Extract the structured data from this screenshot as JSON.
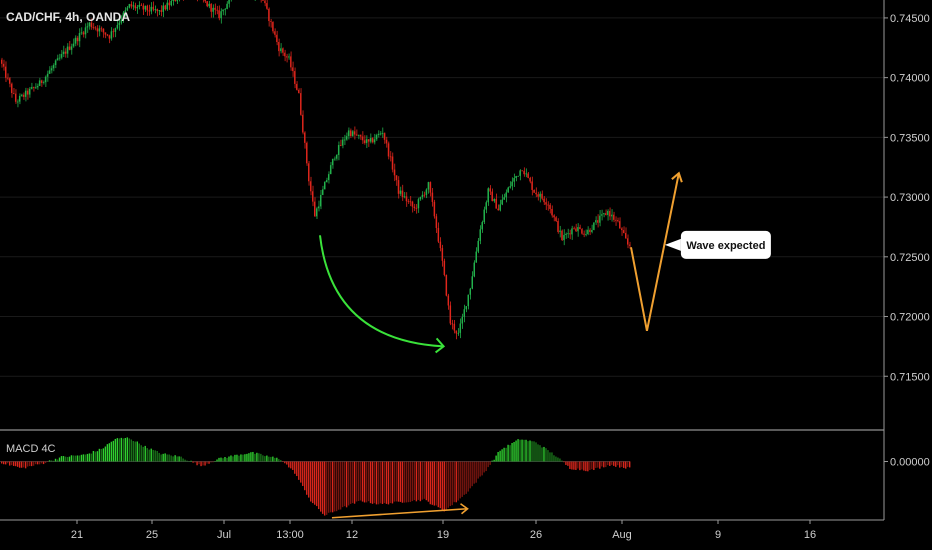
{
  "chart_data": {
    "type": "candlestick",
    "title": "CAD/CHF, 4h, OANDA",
    "price_axis": {
      "ticks": [
        0.745,
        0.74,
        0.735,
        0.73,
        0.725,
        0.72,
        0.715
      ],
      "tick_labels": [
        "0.74500",
        "0.74000",
        "0.73500",
        "0.73000",
        "0.72500",
        "0.72000",
        "0.71500"
      ],
      "range": [
        0.7105,
        0.7465
      ]
    },
    "time_axis": {
      "ticks": [
        "21",
        "25",
        "Jul",
        "13:00",
        "12",
        "19",
        "26",
        "Aug",
        "9",
        "16"
      ]
    },
    "price_path": [
      [
        0,
        0.7415
      ],
      [
        8,
        0.738
      ],
      [
        20,
        0.7395
      ],
      [
        32,
        0.742
      ],
      [
        45,
        0.7445
      ],
      [
        55,
        0.7435
      ],
      [
        65,
        0.746
      ],
      [
        80,
        0.7455
      ],
      [
        95,
        0.7475
      ],
      [
        110,
        0.7452
      ],
      [
        120,
        0.7478
      ],
      [
        132,
        0.7465
      ],
      [
        140,
        0.7425
      ],
      [
        145,
        0.7415
      ],
      [
        150,
        0.7385
      ],
      [
        155,
        0.7315
      ],
      [
        158,
        0.7285
      ],
      [
        162,
        0.7305
      ],
      [
        168,
        0.7335
      ],
      [
        175,
        0.7355
      ],
      [
        185,
        0.7345
      ],
      [
        192,
        0.7355
      ],
      [
        197,
        0.7325
      ],
      [
        200,
        0.7305
      ],
      [
        208,
        0.729
      ],
      [
        215,
        0.731
      ],
      [
        218,
        0.7285
      ],
      [
        222,
        0.7245
      ],
      [
        226,
        0.7195
      ],
      [
        230,
        0.7185
      ],
      [
        236,
        0.7225
      ],
      [
        240,
        0.7265
      ],
      [
        245,
        0.7305
      ],
      [
        250,
        0.729
      ],
      [
        256,
        0.731
      ],
      [
        262,
        0.7325
      ],
      [
        268,
        0.7305
      ],
      [
        275,
        0.7295
      ],
      [
        282,
        0.7265
      ],
      [
        288,
        0.7275
      ],
      [
        294,
        0.727
      ],
      [
        300,
        0.728
      ],
      [
        305,
        0.7288
      ],
      [
        310,
        0.7278
      ],
      [
        315,
        0.726
      ]
    ],
    "price_annotations": [
      {
        "type": "curved-arrow",
        "color": "#3ae23a",
        "from": [
          160,
          0.7268
        ],
        "to": [
          222,
          0.7175
        ]
      },
      {
        "type": "polyline-arrow",
        "color": "#f0a030",
        "points": [
          [
            316,
            0.7258
          ],
          [
            324,
            0.7188
          ],
          [
            340,
            0.732
          ]
        ]
      },
      {
        "type": "callout",
        "text": "Wave expected",
        "anchor": [
          333,
          0.726
        ]
      }
    ],
    "macd": {
      "label": "MACD 4C",
      "tick_labels": [
        "0.00000"
      ],
      "zero": 0,
      "range": [
        -0.0052,
        0.0028
      ],
      "histogram_path": [
        [
          0,
          -0.0001
        ],
        [
          10,
          -0.0006
        ],
        [
          20,
          -0.0002
        ],
        [
          30,
          0.0004
        ],
        [
          42,
          0.0006
        ],
        [
          50,
          0.0011
        ],
        [
          57,
          0.002
        ],
        [
          64,
          0.0021
        ],
        [
          72,
          0.0013
        ],
        [
          80,
          0.0007
        ],
        [
          90,
          0.0004
        ],
        [
          100,
          -0.0004
        ],
        [
          110,
          0.0003
        ],
        [
          125,
          0.0008
        ],
        [
          140,
          0.0002
        ],
        [
          147,
          -0.001
        ],
        [
          155,
          -0.0035
        ],
        [
          162,
          -0.0048
        ],
        [
          170,
          -0.0042
        ],
        [
          180,
          -0.0035
        ],
        [
          190,
          -0.0038
        ],
        [
          200,
          -0.0036
        ],
        [
          212,
          -0.0034
        ],
        [
          222,
          -0.0044
        ],
        [
          232,
          -0.003
        ],
        [
          242,
          -0.001
        ],
        [
          250,
          0.001
        ],
        [
          260,
          0.002
        ],
        [
          268,
          0.0017
        ],
        [
          278,
          0.0005
        ],
        [
          285,
          -0.0006
        ],
        [
          295,
          -0.0008
        ],
        [
          305,
          -0.0003
        ],
        [
          315,
          -0.0006
        ]
      ],
      "annotation": {
        "type": "line-arrow",
        "color": "#f0a030",
        "from": [
          166,
          -0.005
        ],
        "to": [
          234,
          -0.0042
        ]
      }
    },
    "colors": {
      "up": "#22b14c",
      "down": "#e0261c",
      "macd_up": "#2fcf2f",
      "macd_down": "#d9261c",
      "grid": "#1a1a1a",
      "axis_line": "#9a9a9a"
    }
  }
}
